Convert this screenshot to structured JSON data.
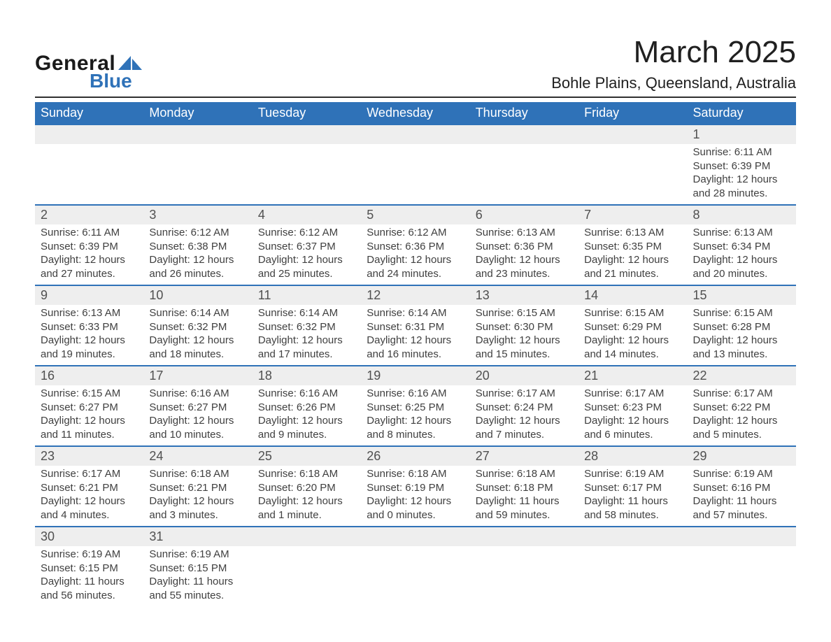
{
  "logo": {
    "text1": "General",
    "text2": "Blue",
    "shape_color": "#2f72b8"
  },
  "header": {
    "month_title": "March 2025",
    "location": "Bohle Plains, Queensland, Australia"
  },
  "calendar": {
    "type": "table",
    "header_bg": "#2f72b8",
    "header_text_color": "#ffffff",
    "row_separator_color": "#2f72b8",
    "daynum_bg": "#eeeeee",
    "body_text_color": "#404040",
    "font_family": "Arial",
    "title_fontsize_pt": 33,
    "location_fontsize_pt": 16,
    "header_fontsize_pt": 13,
    "daynum_fontsize_pt": 13,
    "detail_fontsize_pt": 11,
    "columns": [
      "Sunday",
      "Monday",
      "Tuesday",
      "Wednesday",
      "Thursday",
      "Friday",
      "Saturday"
    ],
    "weeks": [
      {
        "nums": [
          "",
          "",
          "",
          "",
          "",
          "",
          "1"
        ],
        "cells": [
          null,
          null,
          null,
          null,
          null,
          null,
          {
            "sunrise": "Sunrise: 6:11 AM",
            "sunset": "Sunset: 6:39 PM",
            "day1": "Daylight: 12 hours",
            "day2": "and 28 minutes."
          }
        ]
      },
      {
        "nums": [
          "2",
          "3",
          "4",
          "5",
          "6",
          "7",
          "8"
        ],
        "cells": [
          {
            "sunrise": "Sunrise: 6:11 AM",
            "sunset": "Sunset: 6:39 PM",
            "day1": "Daylight: 12 hours",
            "day2": "and 27 minutes."
          },
          {
            "sunrise": "Sunrise: 6:12 AM",
            "sunset": "Sunset: 6:38 PM",
            "day1": "Daylight: 12 hours",
            "day2": "and 26 minutes."
          },
          {
            "sunrise": "Sunrise: 6:12 AM",
            "sunset": "Sunset: 6:37 PM",
            "day1": "Daylight: 12 hours",
            "day2": "and 25 minutes."
          },
          {
            "sunrise": "Sunrise: 6:12 AM",
            "sunset": "Sunset: 6:36 PM",
            "day1": "Daylight: 12 hours",
            "day2": "and 24 minutes."
          },
          {
            "sunrise": "Sunrise: 6:13 AM",
            "sunset": "Sunset: 6:36 PM",
            "day1": "Daylight: 12 hours",
            "day2": "and 23 minutes."
          },
          {
            "sunrise": "Sunrise: 6:13 AM",
            "sunset": "Sunset: 6:35 PM",
            "day1": "Daylight: 12 hours",
            "day2": "and 21 minutes."
          },
          {
            "sunrise": "Sunrise: 6:13 AM",
            "sunset": "Sunset: 6:34 PM",
            "day1": "Daylight: 12 hours",
            "day2": "and 20 minutes."
          }
        ]
      },
      {
        "nums": [
          "9",
          "10",
          "11",
          "12",
          "13",
          "14",
          "15"
        ],
        "cells": [
          {
            "sunrise": "Sunrise: 6:13 AM",
            "sunset": "Sunset: 6:33 PM",
            "day1": "Daylight: 12 hours",
            "day2": "and 19 minutes."
          },
          {
            "sunrise": "Sunrise: 6:14 AM",
            "sunset": "Sunset: 6:32 PM",
            "day1": "Daylight: 12 hours",
            "day2": "and 18 minutes."
          },
          {
            "sunrise": "Sunrise: 6:14 AM",
            "sunset": "Sunset: 6:32 PM",
            "day1": "Daylight: 12 hours",
            "day2": "and 17 minutes."
          },
          {
            "sunrise": "Sunrise: 6:14 AM",
            "sunset": "Sunset: 6:31 PM",
            "day1": "Daylight: 12 hours",
            "day2": "and 16 minutes."
          },
          {
            "sunrise": "Sunrise: 6:15 AM",
            "sunset": "Sunset: 6:30 PM",
            "day1": "Daylight: 12 hours",
            "day2": "and 15 minutes."
          },
          {
            "sunrise": "Sunrise: 6:15 AM",
            "sunset": "Sunset: 6:29 PM",
            "day1": "Daylight: 12 hours",
            "day2": "and 14 minutes."
          },
          {
            "sunrise": "Sunrise: 6:15 AM",
            "sunset": "Sunset: 6:28 PM",
            "day1": "Daylight: 12 hours",
            "day2": "and 13 minutes."
          }
        ]
      },
      {
        "nums": [
          "16",
          "17",
          "18",
          "19",
          "20",
          "21",
          "22"
        ],
        "cells": [
          {
            "sunrise": "Sunrise: 6:15 AM",
            "sunset": "Sunset: 6:27 PM",
            "day1": "Daylight: 12 hours",
            "day2": "and 11 minutes."
          },
          {
            "sunrise": "Sunrise: 6:16 AM",
            "sunset": "Sunset: 6:27 PM",
            "day1": "Daylight: 12 hours",
            "day2": "and 10 minutes."
          },
          {
            "sunrise": "Sunrise: 6:16 AM",
            "sunset": "Sunset: 6:26 PM",
            "day1": "Daylight: 12 hours",
            "day2": "and 9 minutes."
          },
          {
            "sunrise": "Sunrise: 6:16 AM",
            "sunset": "Sunset: 6:25 PM",
            "day1": "Daylight: 12 hours",
            "day2": "and 8 minutes."
          },
          {
            "sunrise": "Sunrise: 6:17 AM",
            "sunset": "Sunset: 6:24 PM",
            "day1": "Daylight: 12 hours",
            "day2": "and 7 minutes."
          },
          {
            "sunrise": "Sunrise: 6:17 AM",
            "sunset": "Sunset: 6:23 PM",
            "day1": "Daylight: 12 hours",
            "day2": "and 6 minutes."
          },
          {
            "sunrise": "Sunrise: 6:17 AM",
            "sunset": "Sunset: 6:22 PM",
            "day1": "Daylight: 12 hours",
            "day2": "and 5 minutes."
          }
        ]
      },
      {
        "nums": [
          "23",
          "24",
          "25",
          "26",
          "27",
          "28",
          "29"
        ],
        "cells": [
          {
            "sunrise": "Sunrise: 6:17 AM",
            "sunset": "Sunset: 6:21 PM",
            "day1": "Daylight: 12 hours",
            "day2": "and 4 minutes."
          },
          {
            "sunrise": "Sunrise: 6:18 AM",
            "sunset": "Sunset: 6:21 PM",
            "day1": "Daylight: 12 hours",
            "day2": "and 3 minutes."
          },
          {
            "sunrise": "Sunrise: 6:18 AM",
            "sunset": "Sunset: 6:20 PM",
            "day1": "Daylight: 12 hours",
            "day2": "and 1 minute."
          },
          {
            "sunrise": "Sunrise: 6:18 AM",
            "sunset": "Sunset: 6:19 PM",
            "day1": "Daylight: 12 hours",
            "day2": "and 0 minutes."
          },
          {
            "sunrise": "Sunrise: 6:18 AM",
            "sunset": "Sunset: 6:18 PM",
            "day1": "Daylight: 11 hours",
            "day2": "and 59 minutes."
          },
          {
            "sunrise": "Sunrise: 6:19 AM",
            "sunset": "Sunset: 6:17 PM",
            "day1": "Daylight: 11 hours",
            "day2": "and 58 minutes."
          },
          {
            "sunrise": "Sunrise: 6:19 AM",
            "sunset": "Sunset: 6:16 PM",
            "day1": "Daylight: 11 hours",
            "day2": "and 57 minutes."
          }
        ]
      },
      {
        "nums": [
          "30",
          "31",
          "",
          "",
          "",
          "",
          ""
        ],
        "cells": [
          {
            "sunrise": "Sunrise: 6:19 AM",
            "sunset": "Sunset: 6:15 PM",
            "day1": "Daylight: 11 hours",
            "day2": "and 56 minutes."
          },
          {
            "sunrise": "Sunrise: 6:19 AM",
            "sunset": "Sunset: 6:15 PM",
            "day1": "Daylight: 11 hours",
            "day2": "and 55 minutes."
          },
          null,
          null,
          null,
          null,
          null
        ]
      }
    ]
  }
}
